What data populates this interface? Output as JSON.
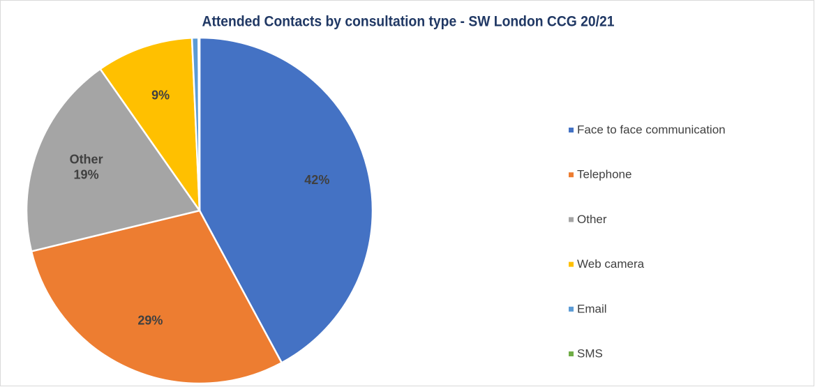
{
  "chart_data": {
    "type": "pie",
    "title": "Attended Contacts by consultation type - SW London CCG 20/21",
    "categories": [
      "Face to face communication",
      "Telephone",
      "Other",
      "Web camera",
      "Email",
      "SMS"
    ],
    "values": [
      42,
      29,
      19,
      9,
      0.6,
      0.1
    ],
    "value_labels": [
      "42%",
      "29%",
      "19%",
      "9%",
      null,
      null
    ],
    "colors": [
      "#4472c4",
      "#ed7d31",
      "#a5a5a5",
      "#ffc000",
      "#5b9bd5",
      "#70ad47"
    ],
    "name_label_index": 2,
    "legend": "right"
  }
}
